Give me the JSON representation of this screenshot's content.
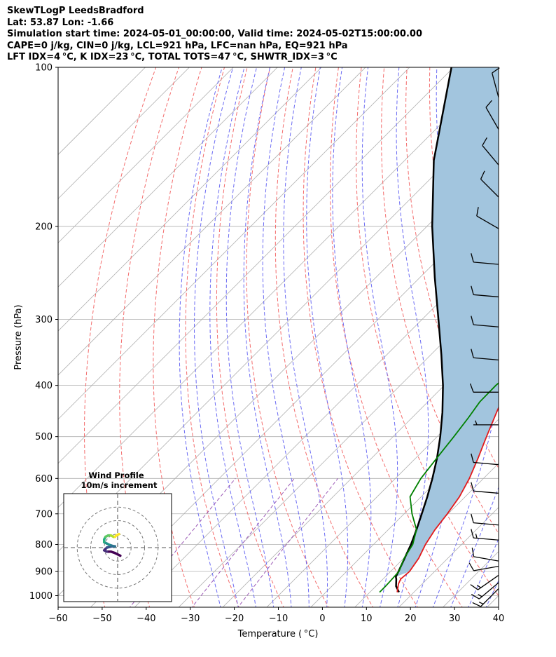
{
  "header": {
    "line1": "SkewTLogP LeedsBradford",
    "line2": "Lat: 53.87   Lon: -1.66",
    "line3": "Simulation start time: 2024-05-01_00:00:00, Valid time: 2024-05-02T15:00:00.00",
    "line4": "CAPE=0 j/kg, CIN=0 j/kg, LCL=921 hPa, LFC=nan hPa, EQ=921 hPa",
    "line5": "LFT IDX=4 °C, K IDX=23 °C, TOTAL TOTS=47 °C, SHWTR_IDX=3 °C"
  },
  "chart_data": {
    "type": "line",
    "subtype": "skew-t-log-p",
    "xlabel": "Temperature ( °C)",
    "ylabel": "Pressure (hPa)",
    "xlim": [
      -60,
      40
    ],
    "ylim": [
      1050,
      100
    ],
    "y_scale": "log",
    "x_ticks": [
      -60,
      -50,
      -40,
      -30,
      -20,
      -10,
      0,
      10,
      20,
      30,
      40
    ],
    "x_tick_labels": [
      "−60",
      "−50",
      "−40",
      "−30",
      "−20",
      "−10",
      "0",
      "10",
      "20",
      "30",
      "40"
    ],
    "y_ticks": [
      1000,
      900,
      800,
      700,
      600,
      500,
      400,
      300,
      200,
      100
    ],
    "y_tick_labels": [
      "1000",
      "900",
      "800",
      "700",
      "600",
      "500",
      "400",
      "300",
      "200",
      "100"
    ],
    "grid": true,
    "series": [
      {
        "role": "temperature",
        "color": "#e31a1c",
        "points": [
          [
            985,
            16.2
          ],
          [
            950,
            14.6
          ],
          [
            930,
            14.0
          ],
          [
            900,
            14.3
          ],
          [
            850,
            13.4
          ],
          [
            800,
            11.8
          ],
          [
            750,
            10.6
          ],
          [
            700,
            9.8
          ],
          [
            650,
            8.7
          ],
          [
            600,
            6.8
          ],
          [
            550,
            4.2
          ],
          [
            500,
            1.2
          ],
          [
            450,
            -2.0
          ],
          [
            400,
            -5.5
          ],
          [
            350,
            -8.9
          ],
          [
            300,
            -12.5
          ],
          [
            270,
            -15.2
          ],
          [
            250,
            -16.7
          ],
          [
            235,
            -17.2
          ],
          [
            225,
            -17.4
          ],
          [
            212,
            -16.2
          ],
          [
            200,
            -15.0
          ],
          [
            185,
            -13.2
          ],
          [
            175,
            -12.0
          ],
          [
            160,
            -10.8
          ],
          [
            150,
            -10.2
          ],
          [
            140,
            -9.5
          ],
          [
            130,
            -9.6
          ],
          [
            120,
            -8.6
          ],
          [
            112,
            -8.5
          ],
          [
            105,
            -7.8
          ],
          [
            100,
            -7.2
          ]
        ]
      },
      {
        "role": "dewpoint",
        "color": "#008000",
        "points": [
          [
            985,
            12.2
          ],
          [
            960,
            12.2
          ],
          [
            940,
            12.1
          ],
          [
            900,
            11.9
          ],
          [
            850,
            10.1
          ],
          [
            800,
            8.9
          ],
          [
            750,
            6.4
          ],
          [
            700,
            1.8
          ],
          [
            650,
            -2.5
          ],
          [
            600,
            -4.2
          ],
          [
            550,
            -5.2
          ],
          [
            500,
            -6.2
          ],
          [
            460,
            -7.2
          ],
          [
            430,
            -8.2
          ],
          [
            400,
            -8.3
          ],
          [
            370,
            -7.5
          ],
          [
            340,
            -7.3
          ],
          [
            310,
            -8.0
          ],
          [
            290,
            -10.0
          ],
          [
            270,
            -13.0
          ],
          [
            250,
            -15.8
          ],
          [
            235,
            -17.8
          ],
          [
            225,
            -18.0
          ],
          [
            215,
            -17.5
          ],
          [
            205,
            -18.5
          ],
          [
            195,
            -22.0
          ],
          [
            188,
            -26.0
          ],
          [
            180,
            -31.0
          ],
          [
            170,
            -33.0
          ],
          [
            155,
            -33.0
          ],
          [
            140,
            -32.5
          ],
          [
            125,
            -32.0
          ],
          [
            112,
            -31.5
          ],
          [
            100,
            -31.2
          ]
        ]
      },
      {
        "role": "parcel",
        "color": "#000000",
        "points": [
          [
            985,
            16.6
          ],
          [
            960,
            14.6
          ],
          [
            930,
            13.0
          ],
          [
            921,
            12.4
          ],
          [
            900,
            11.8
          ],
          [
            850,
            10.2
          ],
          [
            800,
            8.5
          ],
          [
            750,
            6.4
          ],
          [
            700,
            4.0
          ],
          [
            650,
            1.4
          ],
          [
            600,
            -1.6
          ],
          [
            550,
            -5.1
          ],
          [
            500,
            -9.3
          ],
          [
            450,
            -14.3
          ],
          [
            400,
            -20.3
          ],
          [
            350,
            -27.6
          ],
          [
            300,
            -36.3
          ],
          [
            250,
            -46.6
          ],
          [
            200,
            -58.8
          ],
          [
            150,
            -73.4
          ],
          [
            100,
            -90.5
          ]
        ]
      }
    ],
    "cape_shading_color": "#a2c5de",
    "reference_lines": {
      "isotherm_color": "#b0b0b0",
      "dry_adiabat_color": "#f36c6c",
      "moist_adiabat_color": "#6b6bf3",
      "mixing_ratio_color": "#9b59b6"
    },
    "wind_barbs": [
      {
        "p": 970,
        "dir": 225,
        "spd": 15
      },
      {
        "p": 945,
        "dir": 230,
        "spd": 15
      },
      {
        "p": 915,
        "dir": 235,
        "spd": 15
      },
      {
        "p": 880,
        "dir": 260,
        "spd": 12
      },
      {
        "p": 860,
        "dir": 280,
        "spd": 12
      },
      {
        "p": 785,
        "dir": 275,
        "spd": 15
      },
      {
        "p": 735,
        "dir": 275,
        "spd": 12
      },
      {
        "p": 640,
        "dir": 275,
        "spd": 10
      },
      {
        "p": 565,
        "dir": 275,
        "spd": 10
      },
      {
        "p": 475,
        "dir": 270,
        "spd": 8
      },
      {
        "p": 412,
        "dir": 270,
        "spd": 12
      },
      {
        "p": 358,
        "dir": 275,
        "spd": 12
      },
      {
        "p": 310,
        "dir": 275,
        "spd": 10
      },
      {
        "p": 272,
        "dir": 275,
        "spd": 10
      },
      {
        "p": 236,
        "dir": 275,
        "spd": 10
      },
      {
        "p": 202,
        "dir": 300,
        "spd": 10
      },
      {
        "p": 176,
        "dir": 315,
        "spd": 10
      },
      {
        "p": 153,
        "dir": 320,
        "spd": 10
      },
      {
        "p": 131,
        "dir": 330,
        "spd": 10
      },
      {
        "p": 114,
        "dir": 345,
        "spd": 10
      }
    ],
    "hodograph": {
      "title_line1": "Wind Profile",
      "title_line2": "10m/s increment",
      "rings": [
        10,
        20,
        30
      ],
      "extent": 40,
      "points": [
        [
          2,
          -6
        ],
        [
          -2,
          -4
        ],
        [
          -5,
          -3
        ],
        [
          -8,
          -3
        ],
        [
          -10,
          -2
        ],
        [
          -8,
          0
        ],
        [
          -4,
          1
        ],
        [
          -2,
          1
        ],
        [
          -3,
          1
        ],
        [
          -6,
          2
        ],
        [
          -8,
          3
        ],
        [
          -10,
          4
        ],
        [
          -10,
          6
        ],
        [
          -9,
          8
        ],
        [
          -7,
          9
        ],
        [
          -5,
          9
        ],
        [
          -3,
          8
        ],
        [
          -2,
          8
        ],
        [
          -1,
          9
        ],
        [
          1,
          10
        ]
      ]
    }
  }
}
